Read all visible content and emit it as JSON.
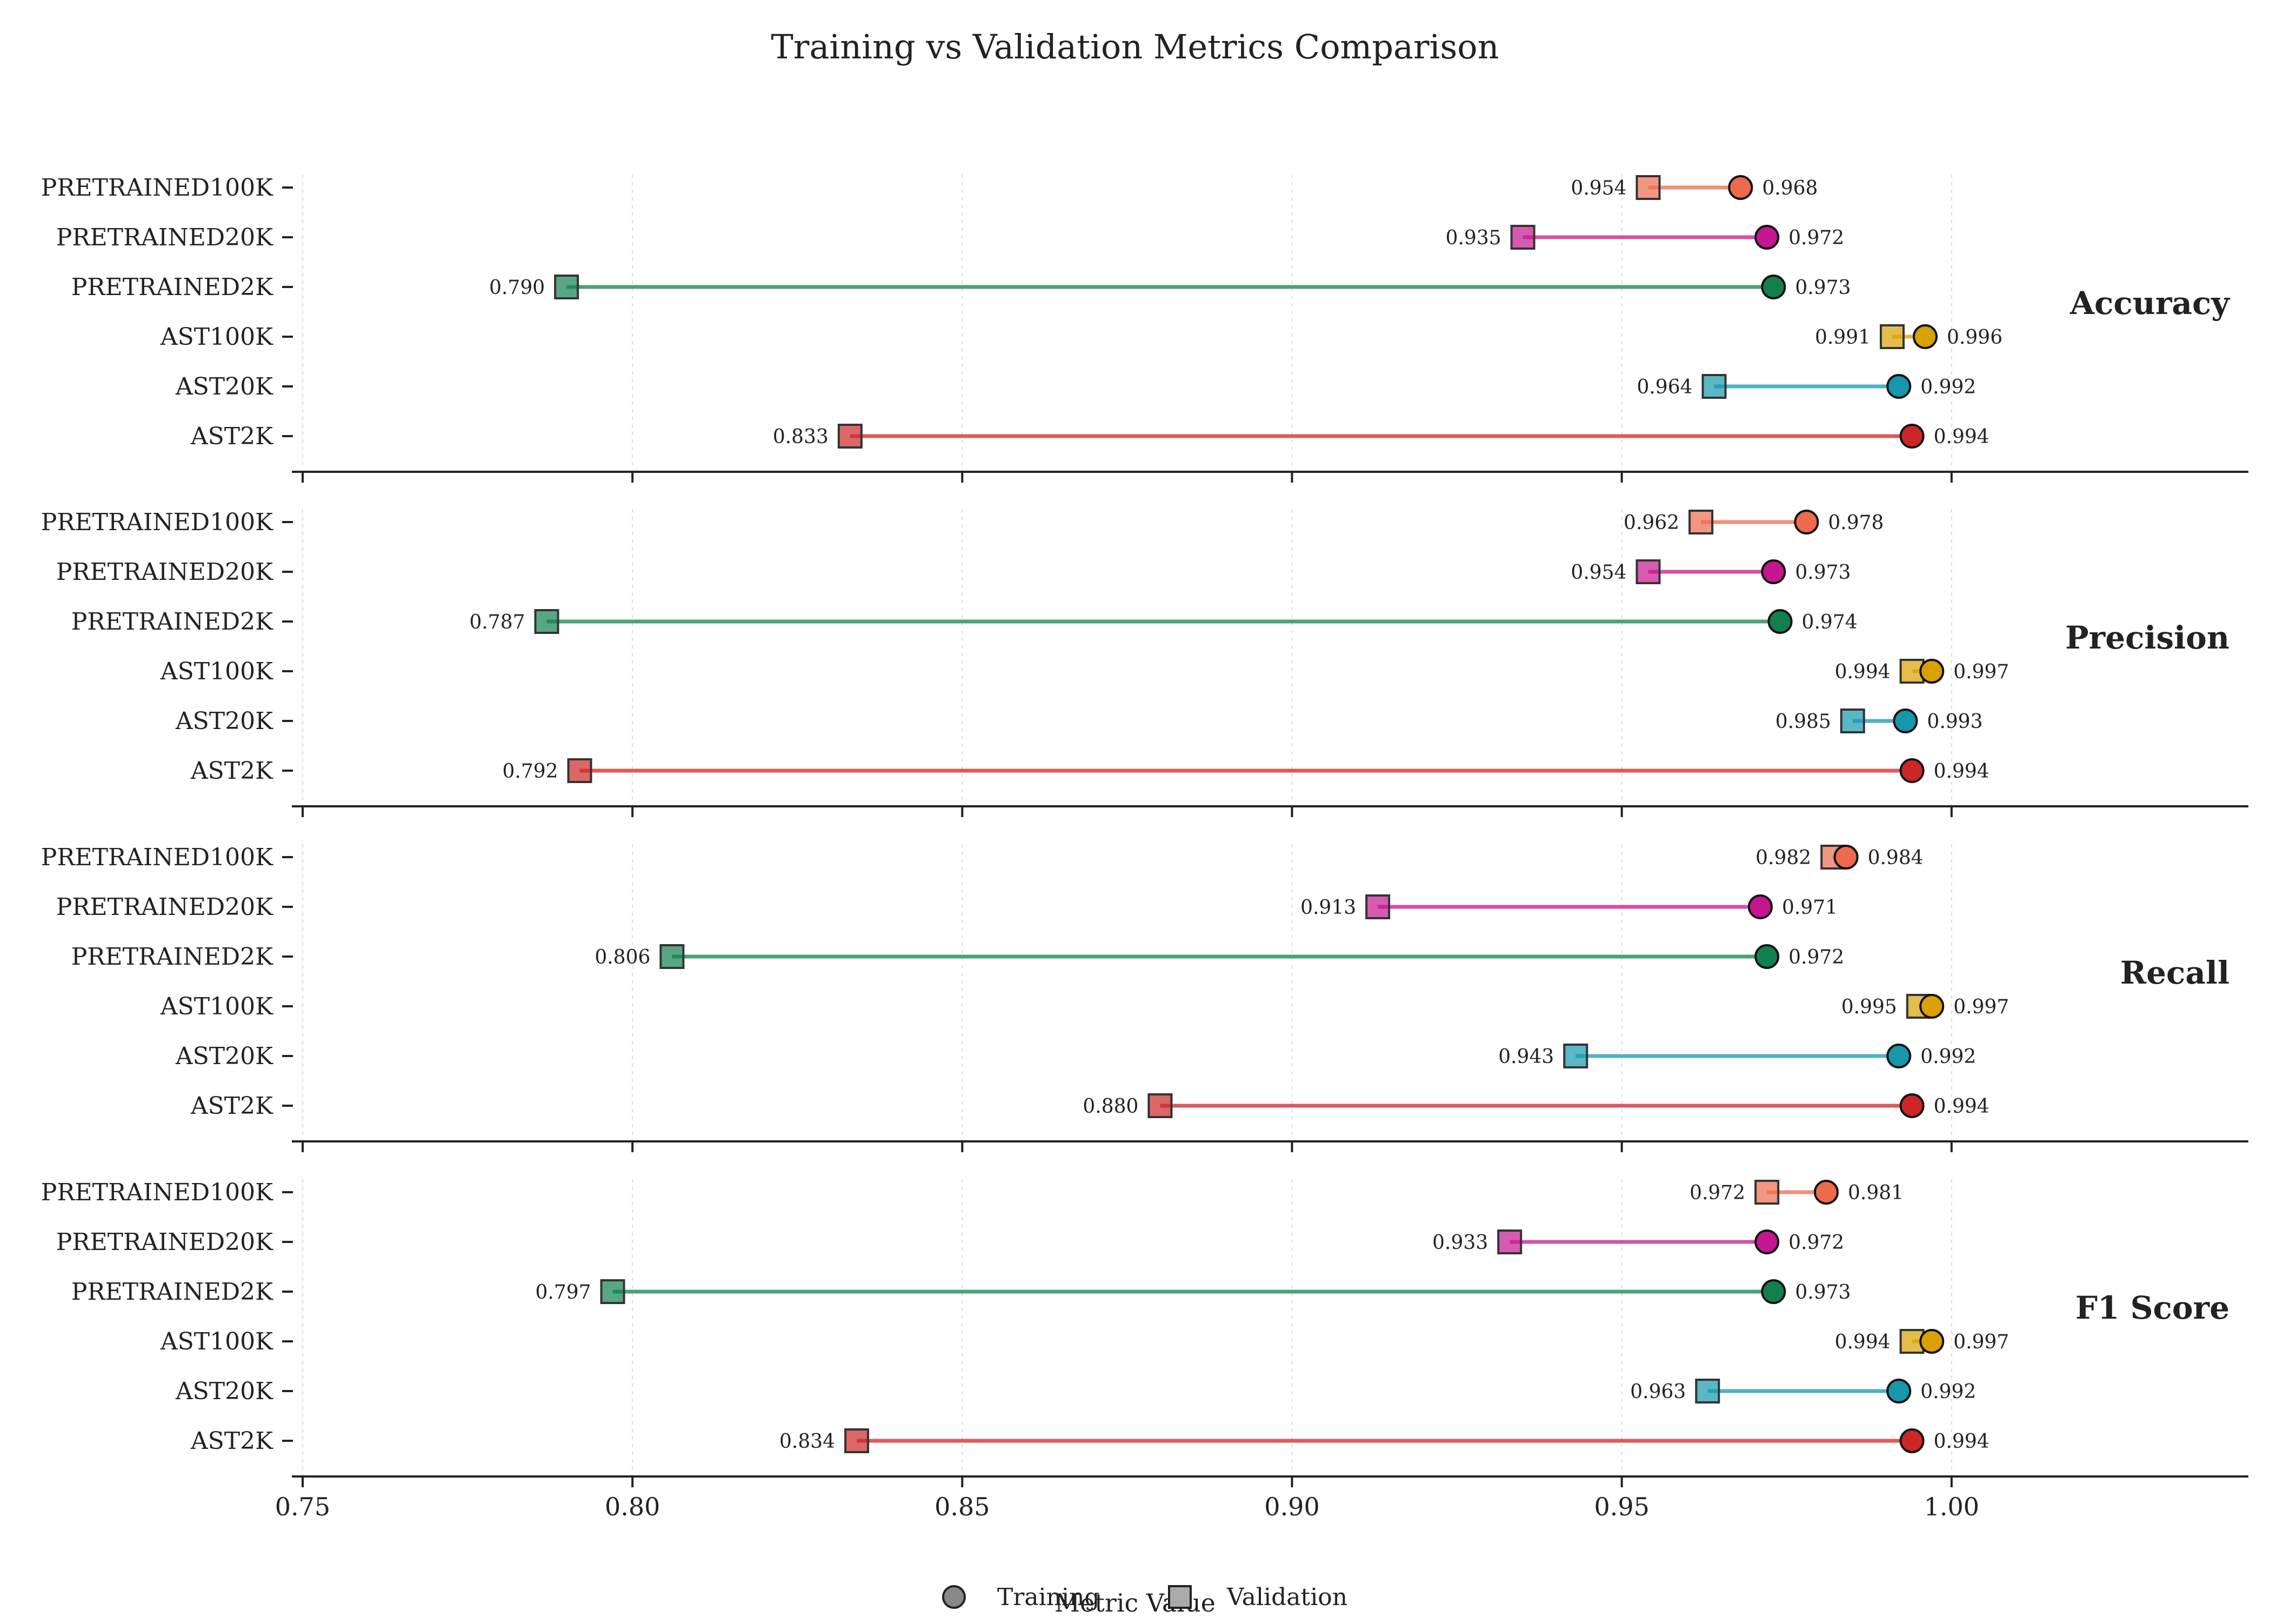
{
  "chart_data": {
    "type": "dumbbell",
    "title": "Training vs Validation Metrics Comparison",
    "xlabel": "Metric Value",
    "xlim": [
      0.75,
      1.045
    ],
    "xticks": [
      "0.75",
      "0.80",
      "0.85",
      "0.90",
      "0.95",
      "1.00"
    ],
    "categories": [
      "PRETRAINED100K",
      "PRETRAINED20K",
      "PRETRAINED2K",
      "AST100K",
      "AST20K",
      "AST2K"
    ],
    "category_colors": [
      "#ee6a4d",
      "#c5168f",
      "#11804e",
      "#d9a100",
      "#1697ac",
      "#cc2626"
    ],
    "legend": {
      "placement": "bottom-center",
      "training": "Training",
      "validation": "Validation"
    },
    "grid": true,
    "panels": [
      {
        "metric": "Accuracy",
        "training": [
          0.968,
          0.972,
          0.973,
          0.996,
          0.992,
          0.994
        ],
        "validation": [
          0.954,
          0.935,
          0.79,
          0.991,
          0.964,
          0.833
        ],
        "training_labels": [
          "0.968",
          "0.972",
          "0.973",
          "0.996",
          "0.992",
          "0.994"
        ],
        "validation_labels": [
          "0.954",
          "0.935",
          "0.790",
          "0.991",
          "0.964",
          "0.833"
        ]
      },
      {
        "metric": "Precision",
        "training": [
          0.978,
          0.973,
          0.974,
          0.997,
          0.993,
          0.994
        ],
        "validation": [
          0.962,
          0.954,
          0.787,
          0.994,
          0.985,
          0.792
        ],
        "training_labels": [
          "0.978",
          "0.973",
          "0.974",
          "0.997",
          "0.993",
          "0.994"
        ],
        "validation_labels": [
          "0.962",
          "0.954",
          "0.787",
          "0.994",
          "0.985",
          "0.792"
        ]
      },
      {
        "metric": "Recall",
        "training": [
          0.984,
          0.971,
          0.972,
          0.997,
          0.992,
          0.994
        ],
        "validation": [
          0.982,
          0.913,
          0.806,
          0.995,
          0.943,
          0.88
        ],
        "training_labels": [
          "0.984",
          "0.971",
          "0.972",
          "0.997",
          "0.992",
          "0.994"
        ],
        "validation_labels": [
          "0.982",
          "0.913",
          "0.806",
          "0.995",
          "0.943",
          "0.880"
        ]
      },
      {
        "metric": "F1 Score",
        "training": [
          0.981,
          0.972,
          0.973,
          0.997,
          0.992,
          0.994
        ],
        "validation": [
          0.972,
          0.933,
          0.797,
          0.994,
          0.963,
          0.834
        ],
        "training_labels": [
          "0.981",
          "0.972",
          "0.973",
          "0.997",
          "0.992",
          "0.994"
        ],
        "validation_labels": [
          "0.972",
          "0.933",
          "0.797",
          "0.994",
          "0.963",
          "0.834"
        ]
      }
    ]
  }
}
